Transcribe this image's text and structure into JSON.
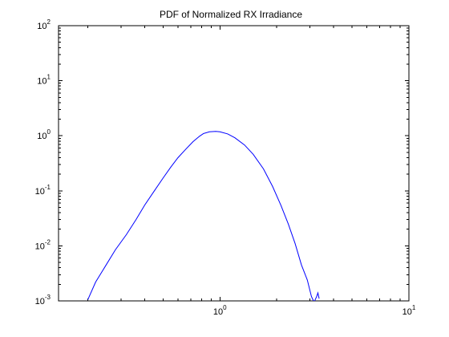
{
  "chart_data": {
    "type": "line",
    "title": "PDF of Normalized RX Irradiance",
    "xlabel": "",
    "ylabel": "",
    "xscale": "log",
    "yscale": "log",
    "xlim": [
      0.14,
      10
    ],
    "ylim": [
      0.001,
      100
    ],
    "grid": false,
    "legend": "none",
    "x_tick_labels": [
      {
        "value": 1,
        "base": "10",
        "exp": "0"
      },
      {
        "value": 10,
        "base": "10",
        "exp": "1"
      }
    ],
    "y_tick_labels": [
      {
        "value": 0.001,
        "base": "10",
        "exp": "-3"
      },
      {
        "value": 0.01,
        "base": "10",
        "exp": "-2"
      },
      {
        "value": 0.1,
        "base": "10",
        "exp": "-1"
      },
      {
        "value": 1,
        "base": "10",
        "exp": "0"
      },
      {
        "value": 10,
        "base": "10",
        "exp": "1"
      },
      {
        "value": 100,
        "base": "10",
        "exp": "2"
      }
    ],
    "series": [
      {
        "color": "#0000ff",
        "x": [
          0.2,
          0.22,
          0.25,
          0.28,
          0.32,
          0.36,
          0.4,
          0.45,
          0.5,
          0.55,
          0.6,
          0.66,
          0.72,
          0.78,
          0.82,
          0.88,
          0.95,
          1.0,
          1.1,
          1.2,
          1.35,
          1.5,
          1.7,
          1.9,
          2.1,
          2.3,
          2.5,
          2.7,
          2.9,
          3.05,
          3.15,
          3.25,
          3.3,
          3.35
        ],
        "y": [
          0.00105,
          0.0022,
          0.0045,
          0.0085,
          0.016,
          0.03,
          0.055,
          0.1,
          0.17,
          0.27,
          0.4,
          0.57,
          0.78,
          0.98,
          1.1,
          1.18,
          1.2,
          1.18,
          1.08,
          0.92,
          0.68,
          0.46,
          0.25,
          0.12,
          0.055,
          0.025,
          0.011,
          0.0045,
          0.0024,
          0.0012,
          0.00095,
          0.0012,
          0.0014,
          0.0011
        ]
      }
    ]
  }
}
